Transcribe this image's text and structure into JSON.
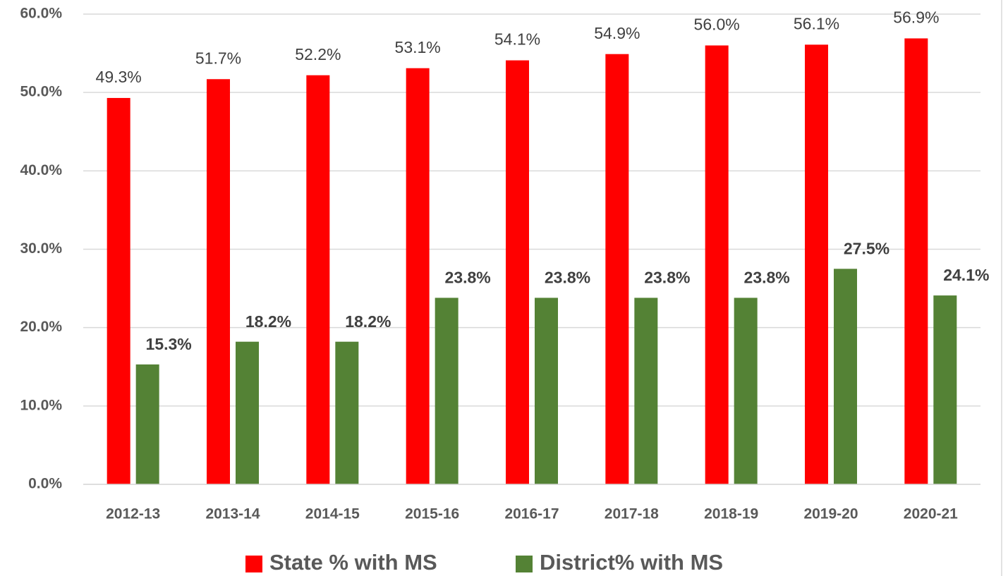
{
  "chart_data": {
    "type": "bar",
    "categories": [
      "2012-13",
      "2013-14",
      "2014-15",
      "2015-16",
      "2016-17",
      "2017-18",
      "2018-19",
      "2019-20",
      "2020-21"
    ],
    "series": [
      {
        "name": "State % with MS",
        "color": "#ff0000",
        "values": [
          49.3,
          51.7,
          52.2,
          53.1,
          54.1,
          54.9,
          56.0,
          56.1,
          56.9
        ],
        "value_labels": [
          "49.3%",
          "51.7%",
          "52.2%",
          "53.1%",
          "54.1%",
          "54.9%",
          "56.0%",
          "56.1%",
          "56.9%"
        ]
      },
      {
        "name": "District% with MS",
        "color": "#548235",
        "values": [
          15.3,
          18.2,
          18.2,
          23.8,
          23.8,
          23.8,
          23.8,
          27.5,
          24.1
        ],
        "value_labels": [
          "15.3%",
          "18.2%",
          "18.2%",
          "23.8%",
          "23.8%",
          "23.8%",
          "23.8%",
          "27.5%",
          "24.1%"
        ]
      }
    ],
    "ylim": [
      0,
      60
    ],
    "yticks": [
      {
        "value": 0,
        "label": "0.0%"
      },
      {
        "value": 10,
        "label": "10.0%"
      },
      {
        "value": 20,
        "label": "20.0%"
      },
      {
        "value": 30,
        "label": "30.0%"
      },
      {
        "value": 40,
        "label": "40.0%"
      },
      {
        "value": 50,
        "label": "50.0%"
      },
      {
        "value": 60,
        "label": "60.0%"
      }
    ],
    "grid": true,
    "legend": "bottom"
  }
}
